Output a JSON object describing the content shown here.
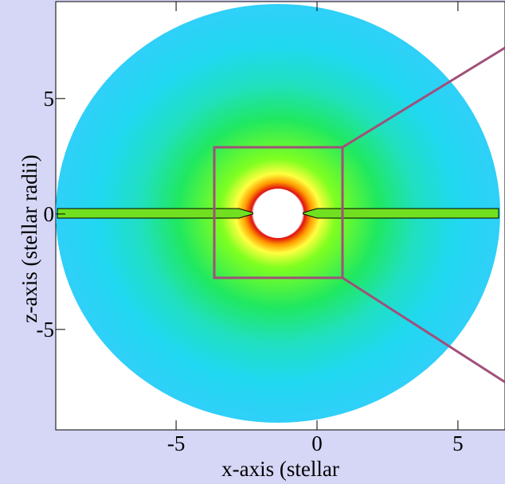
{
  "chart_data": {
    "type": "colormap",
    "x_label": "x-axis (stellar",
    "y_label": "z-axis (stellar radii)",
    "xlim": [
      -9.27,
      6.67
    ],
    "xticks": [
      -5,
      0,
      5
    ],
    "ylim": [
      -9.35,
      9.2
    ],
    "yticks": [
      -5,
      0,
      5
    ]
  }
}
